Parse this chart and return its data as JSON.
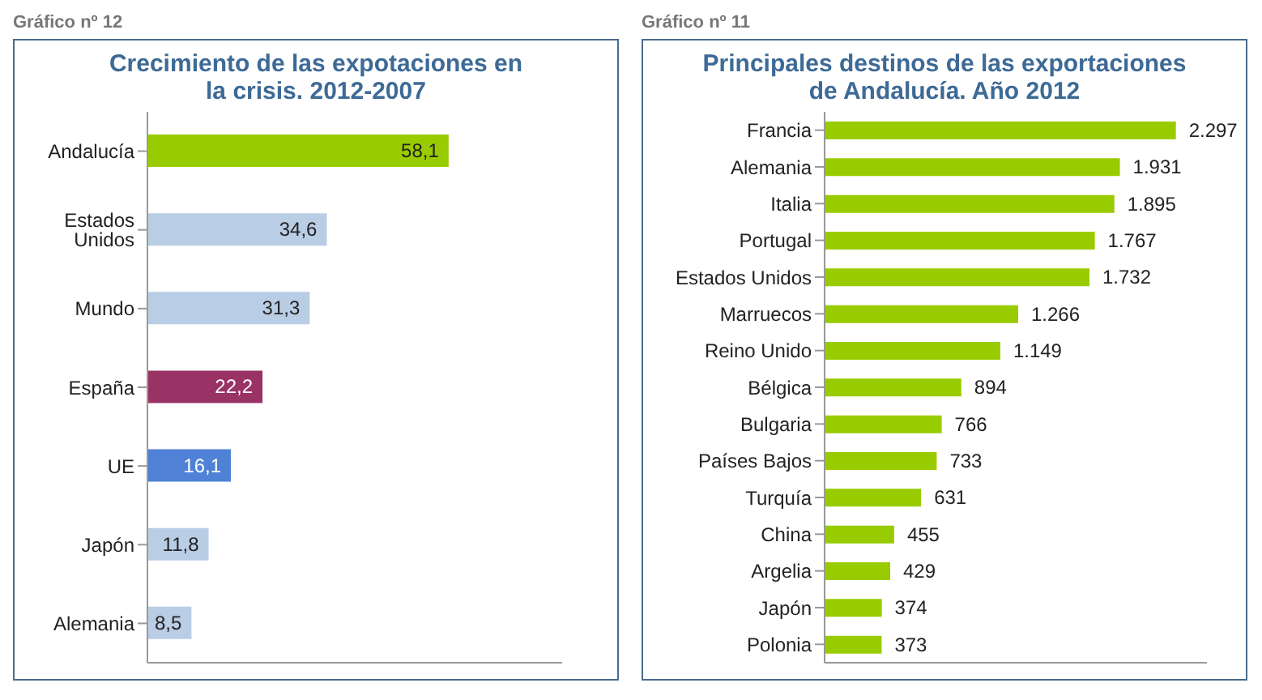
{
  "chart_data": [
    {
      "type": "bar",
      "orientation": "horizontal",
      "title": "Crecimiento de las expotaciones en la crisis. 2012-2007",
      "annotations": [
        "Gráfico nº 12"
      ],
      "categories": [
        "Andalucía",
        "Estados Unidos",
        "Mundo",
        "España",
        "UE",
        "Japón",
        "Alemania"
      ],
      "values": [
        58.1,
        34.6,
        31.3,
        22.2,
        16.1,
        11.8,
        8.5
      ],
      "colors": [
        "#99cc00",
        "#b9cde5",
        "#b9cde5",
        "#993366",
        "#4f81d6",
        "#b9cde5",
        "#b9cde5"
      ],
      "value_labels": [
        "58,1",
        "34,6",
        "31,3",
        "22,2",
        "16,1",
        "11,8",
        "8,5"
      ],
      "xlim": [
        0,
        80
      ],
      "tick_labels": "y",
      "legend": false
    },
    {
      "type": "bar",
      "orientation": "horizontal",
      "title": "Principales destinos de las exportaciones de Andalucía. Año 2012",
      "annotations": [
        "Gráfico nº 11"
      ],
      "categories": [
        "Francia",
        "Alemania",
        "Italia",
        "Portugal",
        "Estados Unidos",
        "Marruecos",
        "Reino Unido",
        "Bélgica",
        "Bulgaria",
        "Países Bajos",
        "Turquía",
        "China",
        "Argelia",
        "Japón",
        "Polonia"
      ],
      "values": [
        2297,
        1931,
        1895,
        1767,
        1732,
        1266,
        1149,
        894,
        766,
        733,
        631,
        455,
        429,
        374,
        373
      ],
      "color": "#99cc00",
      "value_labels": [
        "2.297",
        "1.931",
        "1.895",
        "1.767",
        "1.732",
        "1.266",
        "1.149",
        "894",
        "766",
        "733",
        "631",
        "455",
        "429",
        "374",
        "373"
      ],
      "xlim": [
        0,
        2500
      ],
      "tick_labels": "y",
      "legend": false
    }
  ]
}
